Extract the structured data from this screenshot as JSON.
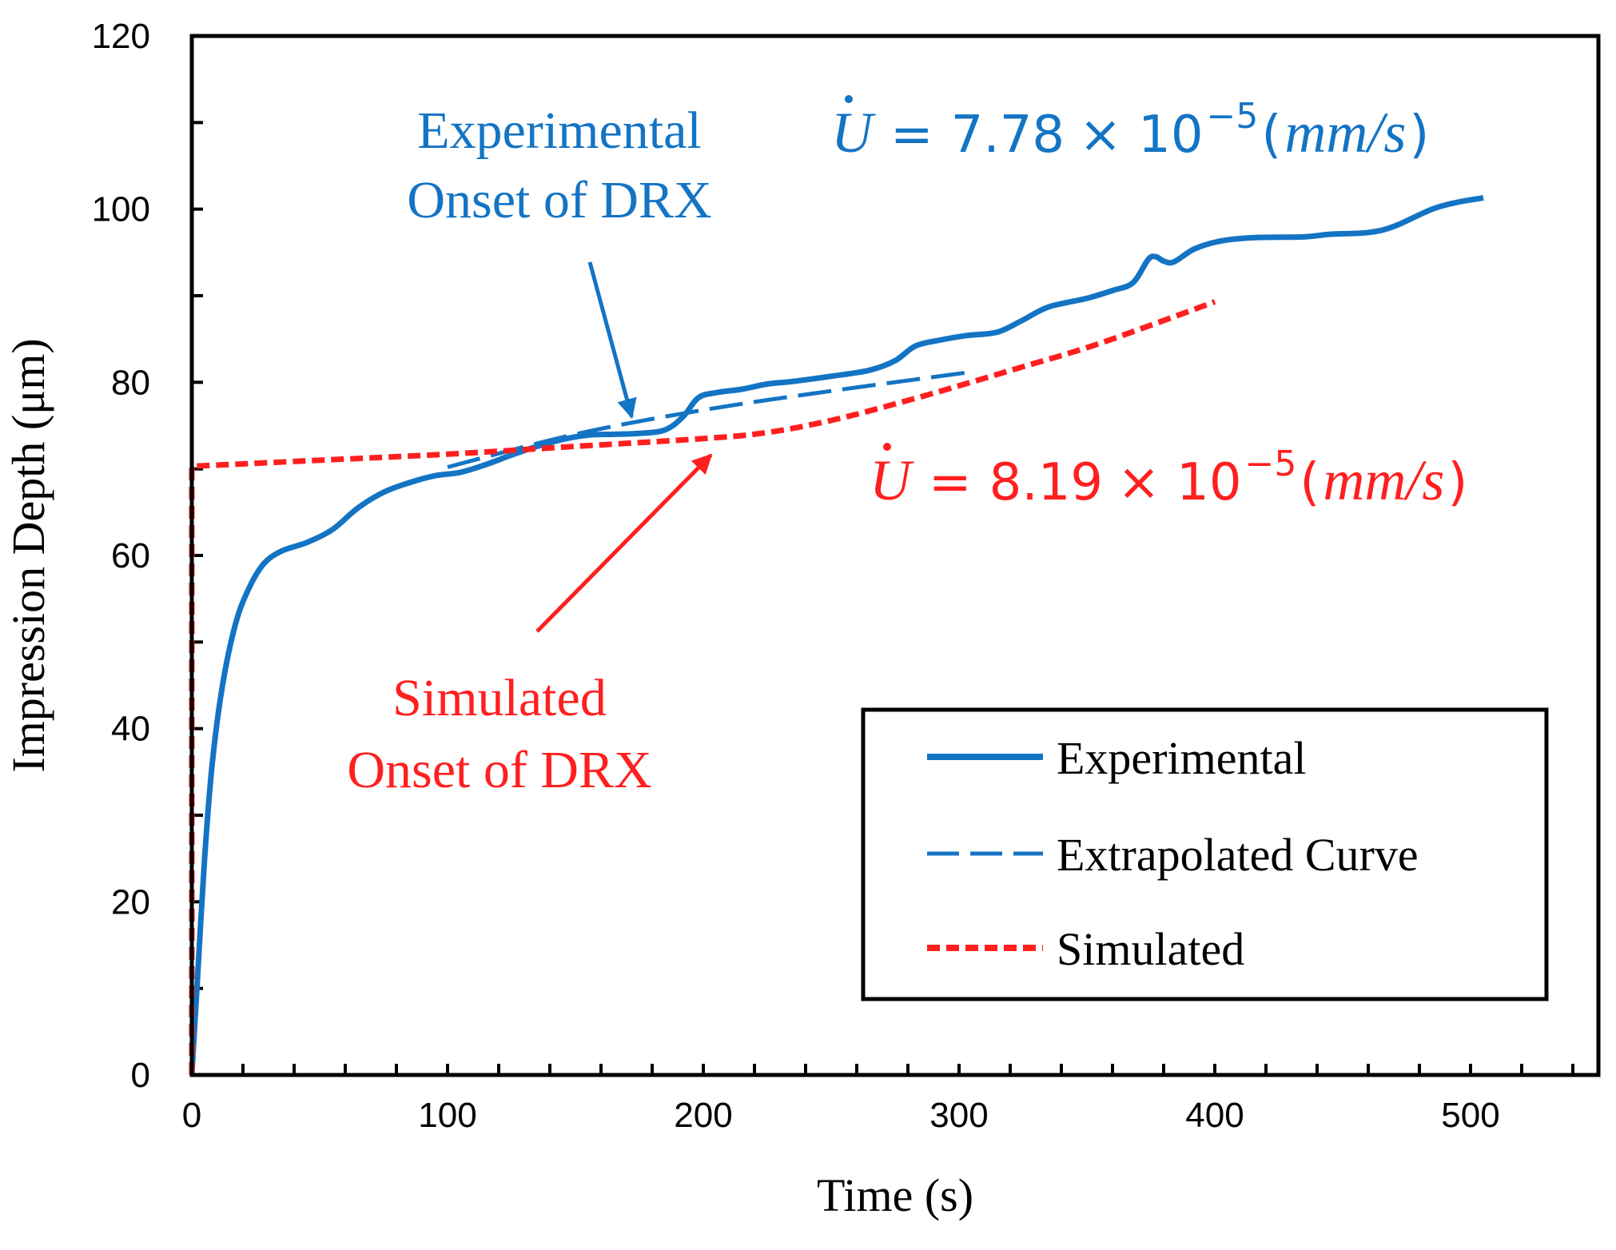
{
  "colors": {
    "experimental": "#1474c4",
    "simulated": "#ff1f1f",
    "axis": "#000000"
  },
  "chart_data": {
    "type": "line",
    "title": "",
    "xlabel": "Time (s)",
    "ylabel": "Impression Depth (μm)",
    "xlim": [
      0,
      550
    ],
    "ylim": [
      0,
      120
    ],
    "x_ticks": [
      0,
      100,
      200,
      300,
      400,
      500
    ],
    "y_ticks": [
      0,
      20,
      40,
      60,
      80,
      100,
      120
    ],
    "x_minor_step": 20,
    "y_minor_step": 10,
    "grid": false,
    "legend_position": "bottom-right",
    "series": [
      {
        "name": "Experimental",
        "style": "solid",
        "color": "#1474c4",
        "points": [
          [
            0,
            0
          ],
          [
            2,
            10
          ],
          [
            5,
            25
          ],
          [
            8,
            36
          ],
          [
            12,
            45
          ],
          [
            17,
            52
          ],
          [
            22,
            56
          ],
          [
            28,
            59
          ],
          [
            35,
            60.5
          ],
          [
            45,
            61.5
          ],
          [
            55,
            63
          ],
          [
            65,
            65.5
          ],
          [
            75,
            67.3
          ],
          [
            85,
            68.4
          ],
          [
            95,
            69.2
          ],
          [
            105,
            69.6
          ],
          [
            115,
            70.5
          ],
          [
            125,
            71.6
          ],
          [
            135,
            72.6
          ],
          [
            145,
            73.4
          ],
          [
            155,
            73.9
          ],
          [
            165,
            74
          ],
          [
            175,
            74.1
          ],
          [
            185,
            74.5
          ],
          [
            192,
            76
          ],
          [
            198,
            78.2
          ],
          [
            205,
            78.8
          ],
          [
            215,
            79.2
          ],
          [
            225,
            79.8
          ],
          [
            235,
            80.1
          ],
          [
            250,
            80.7
          ],
          [
            265,
            81.4
          ],
          [
            275,
            82.5
          ],
          [
            283,
            84.2
          ],
          [
            293,
            84.9
          ],
          [
            303,
            85.4
          ],
          [
            315,
            85.8
          ],
          [
            325,
            87.2
          ],
          [
            335,
            88.7
          ],
          [
            350,
            89.7
          ],
          [
            360,
            90.6
          ],
          [
            368,
            91.5
          ],
          [
            374,
            94.2
          ],
          [
            377,
            94.5
          ],
          [
            380,
            94
          ],
          [
            384,
            93.9
          ],
          [
            392,
            95.4
          ],
          [
            402,
            96.3
          ],
          [
            415,
            96.7
          ],
          [
            435,
            96.8
          ],
          [
            445,
            97.1
          ],
          [
            460,
            97.3
          ],
          [
            470,
            98
          ],
          [
            485,
            100
          ],
          [
            495,
            100.8
          ],
          [
            505,
            101.3
          ]
        ]
      },
      {
        "name": "Extrapolated Curve",
        "style": "dashed",
        "color": "#1474c4",
        "points": [
          [
            100,
            70.2
          ],
          [
            150,
            74
          ],
          [
            200,
            76.8
          ],
          [
            250,
            79
          ],
          [
            305,
            81.2
          ]
        ]
      },
      {
        "name": "Simulated",
        "style": "dotted",
        "color": "#ff1f1f",
        "points": [
          [
            0,
            0
          ],
          [
            0,
            70.3
          ],
          [
            50,
            71
          ],
          [
            100,
            71.7
          ],
          [
            150,
            72.6
          ],
          [
            200,
            73.5
          ],
          [
            225,
            74.2
          ],
          [
            250,
            75.6
          ],
          [
            275,
            77.5
          ],
          [
            300,
            79.6
          ],
          [
            325,
            81.8
          ],
          [
            350,
            84
          ],
          [
            375,
            86.6
          ],
          [
            400,
            89.3
          ]
        ]
      }
    ],
    "annotations": [
      {
        "id": "exp-onset",
        "lines": [
          "Experimental",
          "Onset of DRX"
        ],
        "color": "#1474c4",
        "points_to": [
          172,
          76
        ]
      },
      {
        "id": "sim-onset",
        "lines": [
          "Simulated",
          "Onset of DRX"
        ],
        "color": "#ff1f1f",
        "points_to": [
          203,
          71.6
        ]
      }
    ],
    "rate_labels": [
      {
        "id": "exp-rate",
        "symbol": "U",
        "mantissa": "7.78",
        "exponent": "−5",
        "unit": "mm/s",
        "color": "#1474c4"
      },
      {
        "id": "sim-rate",
        "symbol": "U",
        "mantissa": "8.19",
        "exponent": "−5",
        "unit": "mm/s",
        "color": "#ff1f1f"
      }
    ]
  }
}
